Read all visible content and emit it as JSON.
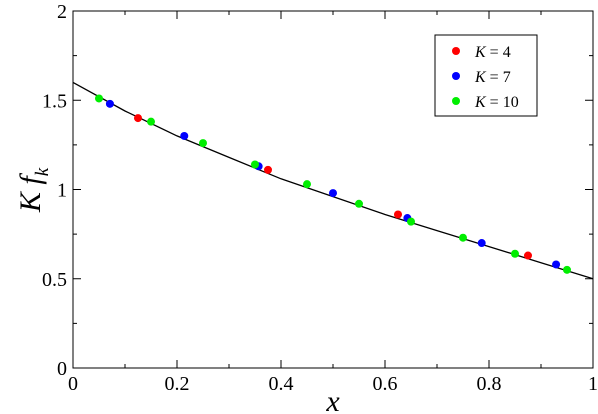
{
  "chart_data": {
    "type": "scatter",
    "xlabel": "x",
    "ylabel": {
      "main": "K f",
      "sub": "k"
    },
    "xlim": [
      0,
      1
    ],
    "ylim": [
      0,
      2
    ],
    "xticks": [
      0,
      0.2,
      0.4,
      0.6,
      0.8,
      1
    ],
    "xtick_labels": [
      "0",
      "0.2",
      "0.4",
      "0.6",
      "0.8",
      "1"
    ],
    "yticks": [
      0,
      0.5,
      1,
      1.5,
      2
    ],
    "ytick_labels": [
      "0",
      "0.5",
      "1",
      "1.5",
      "2"
    ],
    "grid": false,
    "legend_position": "top-right",
    "series": [
      {
        "name": "K = 4",
        "legend_var": "K",
        "legend_value": "= 4",
        "color": "#ff0000",
        "x": [
          0.125,
          0.375,
          0.625,
          0.875
        ],
        "y": [
          1.4,
          1.11,
          0.86,
          0.63
        ]
      },
      {
        "name": "K = 7",
        "legend_var": "K",
        "legend_value": "= 7",
        "color": "#0000ff",
        "x": [
          0.071,
          0.214,
          0.357,
          0.5,
          0.643,
          0.786,
          0.929
        ],
        "y": [
          1.48,
          1.3,
          1.13,
          0.98,
          0.84,
          0.7,
          0.58
        ]
      },
      {
        "name": "K = 10",
        "legend_var": "K",
        "legend_value": "= 10",
        "color": "#00ee00",
        "x": [
          0.05,
          0.15,
          0.25,
          0.35,
          0.45,
          0.55,
          0.65,
          0.75,
          0.85,
          0.95
        ],
        "y": [
          1.51,
          1.38,
          1.26,
          1.14,
          1.03,
          0.92,
          0.82,
          0.73,
          0.64,
          0.55
        ]
      }
    ],
    "fit_curve": {
      "color": "#000000",
      "x": [
        0,
        0.1,
        0.2,
        0.3,
        0.4,
        0.5,
        0.6,
        0.7,
        0.8,
        0.9,
        1.0
      ],
      "y": [
        1.6,
        1.44,
        1.3,
        1.18,
        1.06,
        0.96,
        0.86,
        0.77,
        0.68,
        0.59,
        0.5
      ]
    }
  }
}
